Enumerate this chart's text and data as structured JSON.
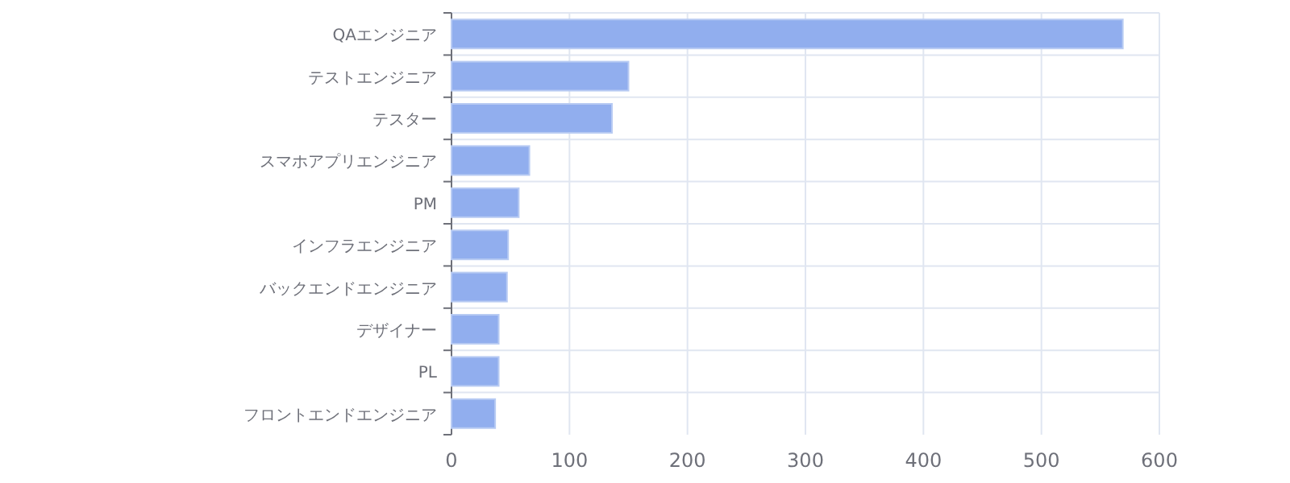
{
  "chart_data": {
    "type": "bar",
    "orientation": "horizontal",
    "categories": [
      "QAエンジニア",
      "テストエンジニア",
      "テスター",
      "スマホアプリエンジニア",
      "PM",
      "インフラエンジニア",
      "バックエンドエンジニア",
      "デザイナー",
      "PL",
      "フロントエンドエンジニア"
    ],
    "values": [
      569,
      150,
      136,
      66,
      57,
      48,
      47,
      40,
      40,
      37
    ],
    "color": "#91aeee",
    "xlim": [
      0,
      600
    ],
    "xticks": [
      0,
      100,
      200,
      300,
      400,
      500,
      600
    ],
    "grid": true
  }
}
